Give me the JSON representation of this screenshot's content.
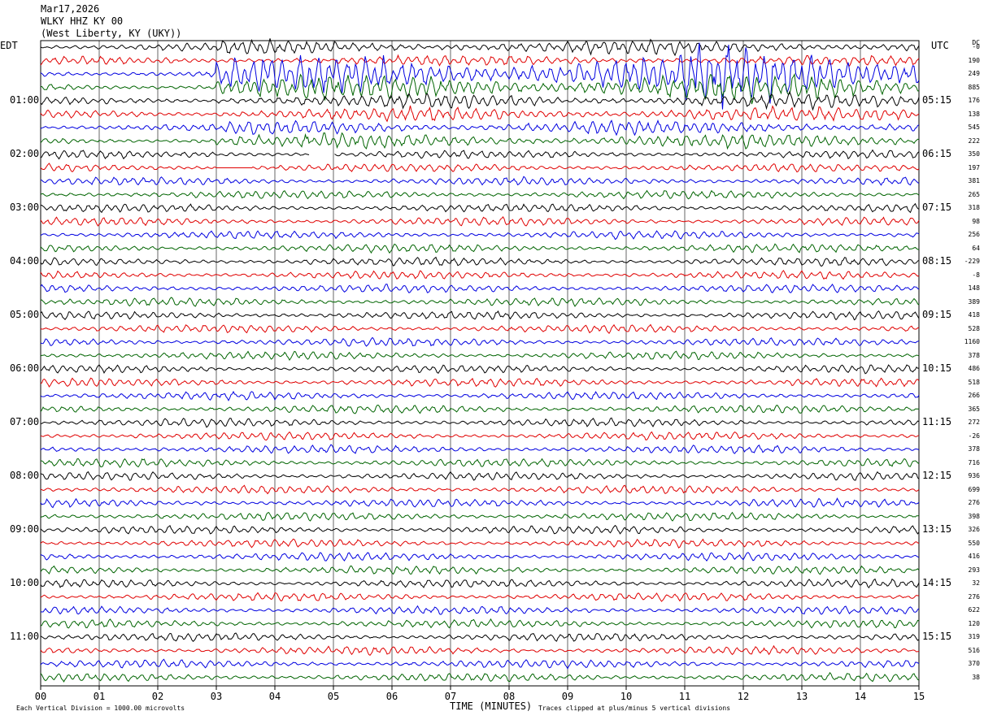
{
  "header": {
    "date": "Mar17,2026",
    "station": "WLKY HHZ KY 00",
    "location": "(West Liberty, KY (UKY))"
  },
  "tz": {
    "left": "EDT",
    "right": "UTC"
  },
  "dc_label": "DC",
  "colors": [
    "#000000",
    "#e00000",
    "#0000e0",
    "#006400"
  ],
  "grid_color": "#000000",
  "chart_data": {
    "type": "line",
    "title": "WLKY HHZ KY 00",
    "xlabel": "TIME (MINUTES)",
    "xticks": [
      "00",
      "01",
      "02",
      "03",
      "04",
      "05",
      "06",
      "07",
      "08",
      "09",
      "10",
      "11",
      "12",
      "13",
      "14",
      "15"
    ],
    "x_range": [
      0,
      15
    ],
    "left_labels": [
      "01:00",
      "02:00",
      "03:00",
      "04:00",
      "05:00",
      "06:00",
      "07:00",
      "08:00",
      "09:00",
      "10:00",
      "11:00"
    ],
    "right_labels": [
      "05:15",
      "06:15",
      "07:15",
      "08:15",
      "09:15",
      "10:15",
      "11:15",
      "12:15",
      "13:15",
      "14:15",
      "15:15"
    ],
    "dc_values": [
      "-0",
      "190",
      "249",
      "885",
      "176",
      "138",
      "545",
      "222",
      "350",
      "197",
      "381",
      "265",
      "318",
      "98",
      "256",
      "64",
      "-229",
      "-8",
      "148",
      "389",
      "418",
      "528",
      "1160",
      "378",
      "486",
      "518",
      "266",
      "365",
      "272",
      "-26",
      "378",
      "716",
      "936",
      "699",
      "276",
      "398",
      "326",
      "550",
      "416",
      "293",
      "32",
      "276",
      "622",
      "120",
      "319",
      "516",
      "370",
      "38"
    ],
    "trace_count": 48,
    "traces_per_hour": 4,
    "minutes_per_trace": 15,
    "event": {
      "start_min": 3.0,
      "end_min": 15.0,
      "traces": [
        0,
        7
      ]
    },
    "gap": {
      "trace": 8,
      "start_min": 4.6,
      "end_min": 5.0
    },
    "flat": {
      "trace": 9,
      "start_min": 3.0,
      "end_min": 3.6
    },
    "footnote_left": "Each Vertical Division = 1000.00 microvolts",
    "footnote_right": "Traces clipped at plus/minus 5 vertical divisions"
  }
}
